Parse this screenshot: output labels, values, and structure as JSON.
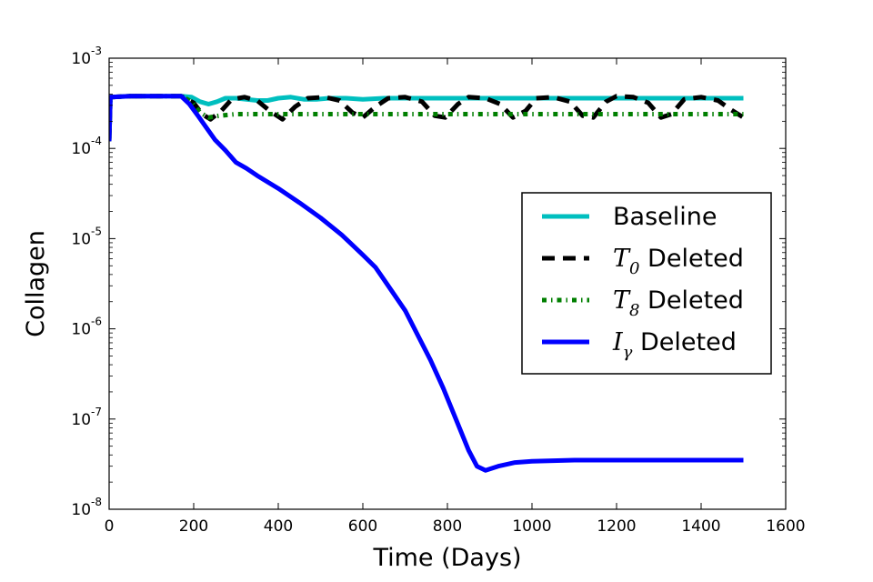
{
  "chart_data": {
    "type": "line",
    "title": "",
    "xlabel": "Time (Days)",
    "ylabel": "Collagen",
    "xlim": [
      0,
      1600
    ],
    "ylim": [
      1e-08,
      0.001
    ],
    "yscale": "log",
    "grid": false,
    "legend_position": "center-right",
    "x_ticks": [
      "0",
      "200",
      "400",
      "600",
      "800",
      "1000",
      "1200",
      "1400",
      "1600"
    ],
    "y_ticks": [
      {
        "base": "10",
        "exp": "-8"
      },
      {
        "base": "10",
        "exp": "-7"
      },
      {
        "base": "10",
        "exp": "-6"
      },
      {
        "base": "10",
        "exp": "-5"
      },
      {
        "base": "10",
        "exp": "-4"
      },
      {
        "base": "10",
        "exp": "-3"
      }
    ],
    "series": [
      {
        "name": "Baseline",
        "legend_math": "",
        "legend_sub": "",
        "legend_suffix": "Baseline",
        "color": "#00bfbf",
        "style": "solid",
        "points": [
          [
            0,
            0.00012
          ],
          [
            3,
            0.00037
          ],
          [
            50,
            0.00038
          ],
          [
            100,
            0.00038
          ],
          [
            170,
            0.00038
          ],
          [
            195,
            0.00037
          ],
          [
            215,
            0.00033
          ],
          [
            235,
            0.00031
          ],
          [
            255,
            0.00033
          ],
          [
            275,
            0.00036
          ],
          [
            300,
            0.00036
          ],
          [
            350,
            0.00034
          ],
          [
            375,
            0.00034
          ],
          [
            400,
            0.00036
          ],
          [
            430,
            0.00037
          ],
          [
            460,
            0.00035
          ],
          [
            490,
            0.00035
          ],
          [
            520,
            0.00036
          ],
          [
            560,
            0.00036
          ],
          [
            600,
            0.00035
          ],
          [
            650,
            0.00036
          ],
          [
            700,
            0.00036
          ],
          [
            800,
            0.00036
          ],
          [
            900,
            0.00036
          ],
          [
            1000,
            0.00036
          ],
          [
            1100,
            0.00036
          ],
          [
            1200,
            0.00036
          ],
          [
            1300,
            0.00036
          ],
          [
            1400,
            0.00036
          ],
          [
            1500,
            0.00036
          ]
        ]
      },
      {
        "name": "T0 Deleted",
        "legend_math": "T",
        "legend_sub": "0",
        "legend_suffix": " Deleted",
        "color": "#000000",
        "style": "dashed",
        "points": [
          [
            0,
            0.00012
          ],
          [
            3,
            0.00037
          ],
          [
            50,
            0.00038
          ],
          [
            100,
            0.00038
          ],
          [
            170,
            0.00038
          ],
          [
            200,
            0.00032
          ],
          [
            220,
            0.00024
          ],
          [
            240,
            0.00021
          ],
          [
            265,
            0.00026
          ],
          [
            290,
            0.00035
          ],
          [
            320,
            0.00037
          ],
          [
            350,
            0.00034
          ],
          [
            380,
            0.00026
          ],
          [
            410,
            0.00021
          ],
          [
            440,
            0.00029
          ],
          [
            470,
            0.00036
          ],
          [
            510,
            0.00037
          ],
          [
            545,
            0.00034
          ],
          [
            575,
            0.00025
          ],
          [
            600,
            0.00022
          ],
          [
            630,
            0.00029
          ],
          [
            660,
            0.00036
          ],
          [
            700,
            0.00037
          ],
          [
            740,
            0.00033
          ],
          [
            770,
            0.00023
          ],
          [
            795,
            0.00022
          ],
          [
            825,
            0.00031
          ],
          [
            850,
            0.00037
          ],
          [
            890,
            0.00036
          ],
          [
            925,
            0.00031
          ],
          [
            955,
            0.00022
          ],
          [
            985,
            0.00026
          ],
          [
            1010,
            0.00036
          ],
          [
            1050,
            0.00037
          ],
          [
            1090,
            0.00033
          ],
          [
            1120,
            0.00023
          ],
          [
            1145,
            0.00022
          ],
          [
            1175,
            0.00033
          ],
          [
            1200,
            0.00038
          ],
          [
            1240,
            0.00037
          ],
          [
            1275,
            0.00032
          ],
          [
            1305,
            0.00022
          ],
          [
            1330,
            0.00024
          ],
          [
            1360,
            0.00035
          ],
          [
            1400,
            0.00037
          ],
          [
            1440,
            0.00034
          ],
          [
            1470,
            0.00027
          ],
          [
            1500,
            0.00022
          ]
        ]
      },
      {
        "name": "T8 Deleted",
        "legend_math": "T",
        "legend_sub": "8",
        "legend_suffix": " Deleted",
        "color": "#007f00",
        "style": "dashdot",
        "points": [
          [
            0,
            0.00012
          ],
          [
            3,
            0.00037
          ],
          [
            50,
            0.00038
          ],
          [
            100,
            0.00038
          ],
          [
            170,
            0.00038
          ],
          [
            195,
            0.00033
          ],
          [
            215,
            0.00025
          ],
          [
            235,
            0.00022
          ],
          [
            260,
            0.00023
          ],
          [
            300,
            0.00024
          ],
          [
            400,
            0.00024
          ],
          [
            500,
            0.00024
          ],
          [
            600,
            0.00024
          ],
          [
            700,
            0.00024
          ],
          [
            800,
            0.00024
          ],
          [
            900,
            0.00024
          ],
          [
            1000,
            0.00024
          ],
          [
            1100,
            0.00024
          ],
          [
            1200,
            0.00024
          ],
          [
            1300,
            0.00024
          ],
          [
            1400,
            0.00024
          ],
          [
            1500,
            0.00024
          ]
        ]
      },
      {
        "name": "Iγ Deleted",
        "legend_math": "I",
        "legend_sub": "γ",
        "legend_suffix": " Deleted",
        "color": "#0000ff",
        "style": "solid",
        "points": [
          [
            0,
            0.00012
          ],
          [
            3,
            0.00037
          ],
          [
            50,
            0.00038
          ],
          [
            100,
            0.00038
          ],
          [
            170,
            0.00038
          ],
          [
            190,
            0.00031
          ],
          [
            210,
            0.00023
          ],
          [
            230,
            0.00017
          ],
          [
            250,
            0.000125
          ],
          [
            275,
            9.5e-05
          ],
          [
            300,
            7e-05
          ],
          [
            325,
            6e-05
          ],
          [
            350,
            5e-05
          ],
          [
            400,
            3.6e-05
          ],
          [
            450,
            2.5e-05
          ],
          [
            500,
            1.7e-05
          ],
          [
            550,
            1.1e-05
          ],
          [
            600,
            6.6e-06
          ],
          [
            630,
            4.8e-06
          ],
          [
            650,
            3.5e-06
          ],
          [
            700,
            1.6e-06
          ],
          [
            730,
            8.5e-07
          ],
          [
            760,
            4.5e-07
          ],
          [
            790,
            2.2e-07
          ],
          [
            820,
            1e-07
          ],
          [
            850,
            4.5e-08
          ],
          [
            870,
            3e-08
          ],
          [
            890,
            2.7e-08
          ],
          [
            920,
            3e-08
          ],
          [
            960,
            3.3e-08
          ],
          [
            1000,
            3.4e-08
          ],
          [
            1100,
            3.5e-08
          ],
          [
            1200,
            3.5e-08
          ],
          [
            1300,
            3.5e-08
          ],
          [
            1400,
            3.5e-08
          ],
          [
            1500,
            3.5e-08
          ]
        ]
      }
    ]
  }
}
